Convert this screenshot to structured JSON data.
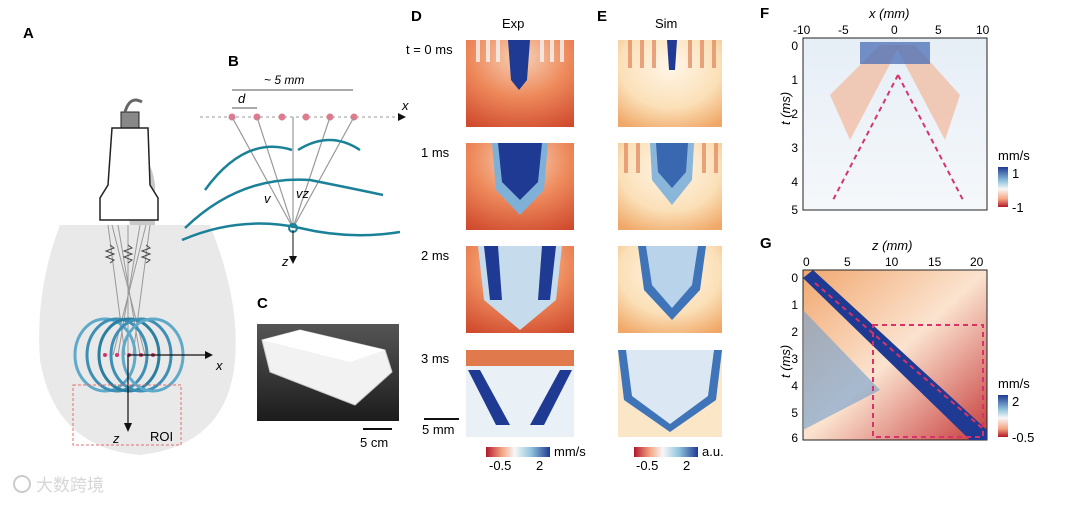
{
  "panels": {
    "A": {
      "label": "A",
      "x_axis": "x",
      "z_axis": "z",
      "roi": "ROI"
    },
    "B": {
      "label": "B",
      "spacing": "~ 5 mm",
      "d": "d",
      "x_axis": "x",
      "z_axis": "z",
      "v": "v",
      "vz": "vz"
    },
    "C": {
      "label": "C",
      "scale": "5 cm"
    },
    "D": {
      "label": "D",
      "title": "Exp",
      "rows": [
        "t = 0 ms",
        "1 ms",
        "2 ms",
        "3 ms"
      ],
      "scale": "5 mm",
      "cbar_min": "-0.5",
      "cbar_max": "2",
      "cbar_unit": "mm/s"
    },
    "E": {
      "label": "E",
      "title": "Sim",
      "cbar_min": "-0.5",
      "cbar_max": "2",
      "cbar_unit": "a.u."
    },
    "F": {
      "label": "F",
      "xlabel": "x (mm)",
      "ylabel": "t (ms)",
      "xticks": [
        "-10",
        "-5",
        "0",
        "5",
        "10"
      ],
      "yticks": [
        "0",
        "1",
        "2",
        "3",
        "4",
        "5"
      ],
      "cbar_unit": "mm/s",
      "cbar_max": "1",
      "cbar_min": "-1"
    },
    "G": {
      "label": "G",
      "xlabel": "z (mm)",
      "ylabel": "t (ms)",
      "xticks": [
        "0",
        "5",
        "10",
        "15",
        "20"
      ],
      "yticks": [
        "0",
        "1",
        "2",
        "3",
        "4",
        "5",
        "6"
      ],
      "cbar_unit": "mm/s",
      "cbar_max": "2",
      "cbar_min": "-0.5"
    }
  },
  "watermark": "大数跨境",
  "colors": {
    "blue": "#1f3a93",
    "red": "#c8102e",
    "teal": "#2a7fa0",
    "dash": "#d6336c",
    "light": "#e9e9e9"
  }
}
